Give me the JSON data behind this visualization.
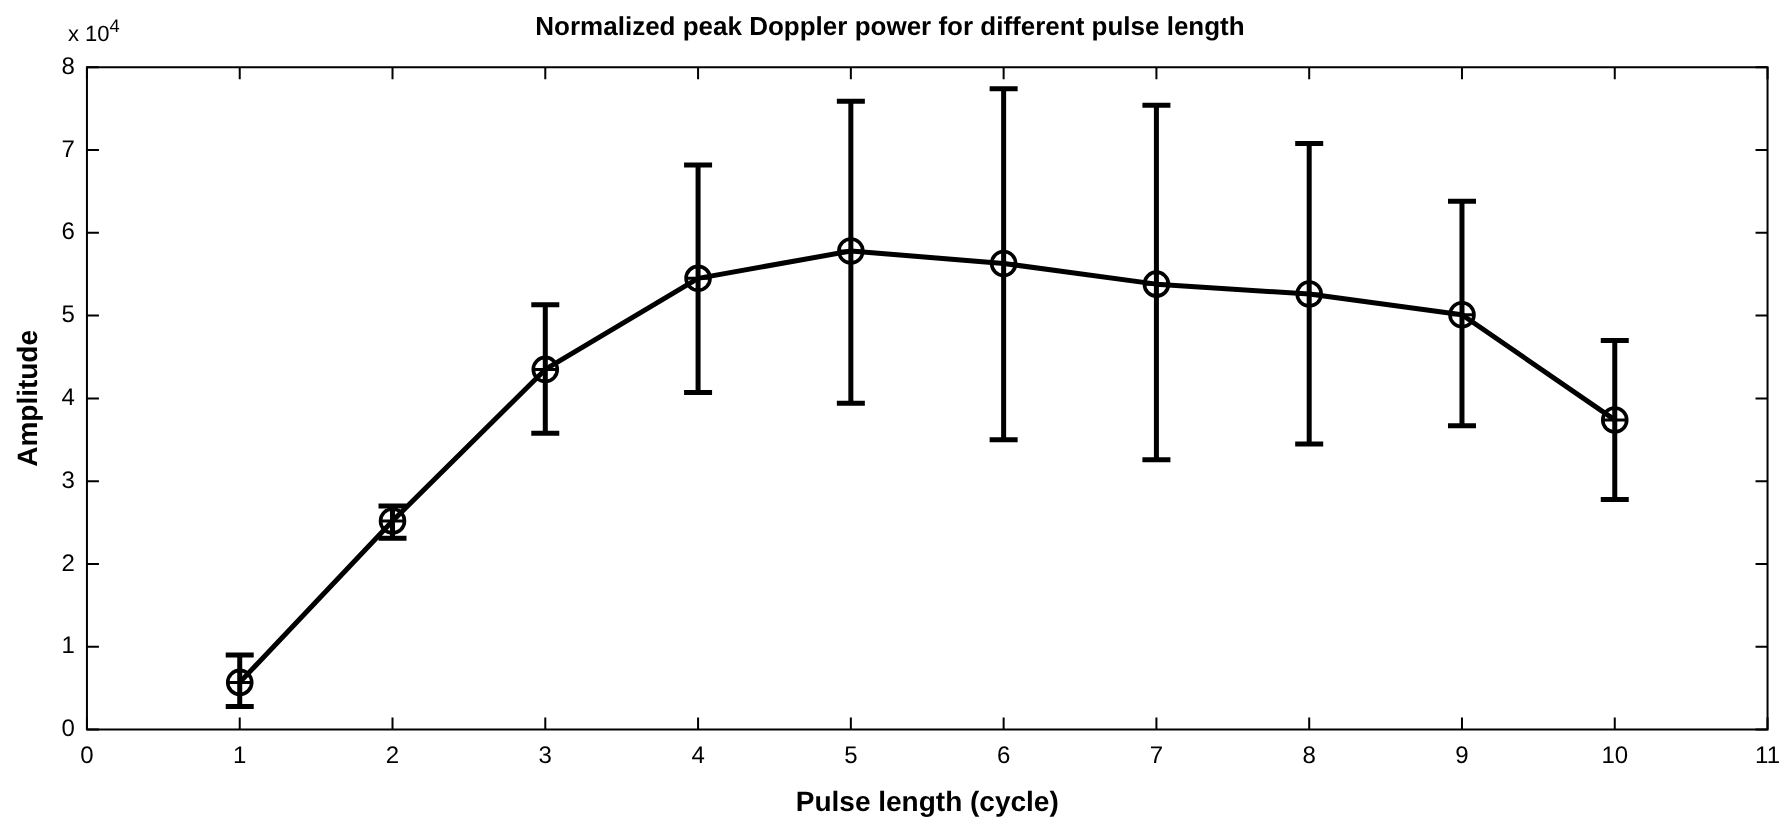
{
  "chart_data": {
    "type": "line",
    "title": "Normalized peak Doppler power for different pulse length",
    "xlabel": "Pulse length (cycle)",
    "ylabel": "Amplitude",
    "annotations": [
      "x 10$^{4}$"
    ],
    "x": [
      1,
      2,
      3,
      4,
      5,
      6,
      7,
      8,
      9,
      10
    ],
    "series": [
      {
        "color": "#000000",
        "values": [
          0.57,
          2.52,
          4.35,
          5.45,
          5.78,
          5.63,
          5.38,
          5.26,
          5.01,
          3.74
        ],
        "errors": [
          [
            0.28,
            0.9
          ],
          [
            2.31,
            2.7
          ],
          [
            3.58,
            5.13
          ],
          [
            4.07,
            6.82
          ],
          [
            3.94,
            7.59
          ],
          [
            3.5,
            7.74
          ],
          [
            3.26,
            7.54
          ],
          [
            3.45,
            7.08
          ],
          [
            3.67,
            6.38
          ],
          [
            2.78,
            4.7
          ]
        ]
      }
    ],
    "xlim": [
      0,
      11
    ],
    "xticks": [
      0,
      1,
      2,
      3,
      4,
      5,
      6,
      7,
      8,
      9,
      10,
      11
    ],
    "ylim": [
      0,
      8
    ],
    "yticks": [
      0,
      1,
      2,
      3,
      4,
      5,
      6,
      7,
      8
    ],
    "grid": false,
    "legend": false,
    "marker": "circle",
    "line_style": "solid"
  }
}
